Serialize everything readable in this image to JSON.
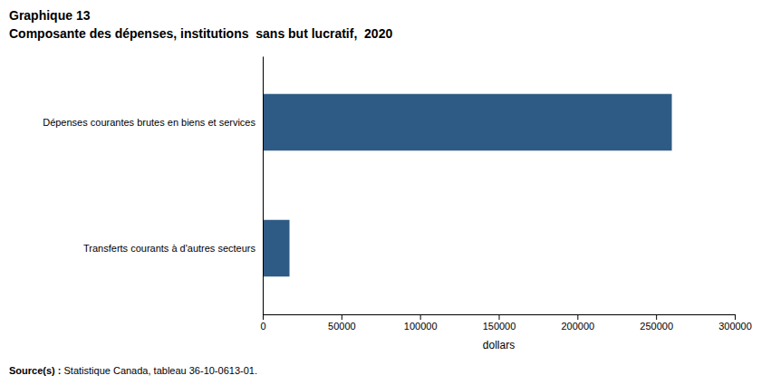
{
  "chart_data": {
    "type": "bar",
    "orientation": "horizontal",
    "title": "Graphique 13",
    "subtitle": "Composante des dépenses, institutions  sans but lucratif,  2020",
    "categories": [
      "Dépenses courantes brutes en biens et services",
      "Transferts courants à d'autres secteurs"
    ],
    "values": [
      260000,
      17000
    ],
    "color": "#2e5b85",
    "xlim": [
      0,
      300000
    ],
    "xticks": [
      0,
      50000,
      100000,
      150000,
      200000,
      250000,
      300000
    ],
    "xlabel": "dollars",
    "annotations": [
      "Source(s) :",
      " Statistique Canada, tableau 36-10-0613-01."
    ],
    "grid": false
  }
}
